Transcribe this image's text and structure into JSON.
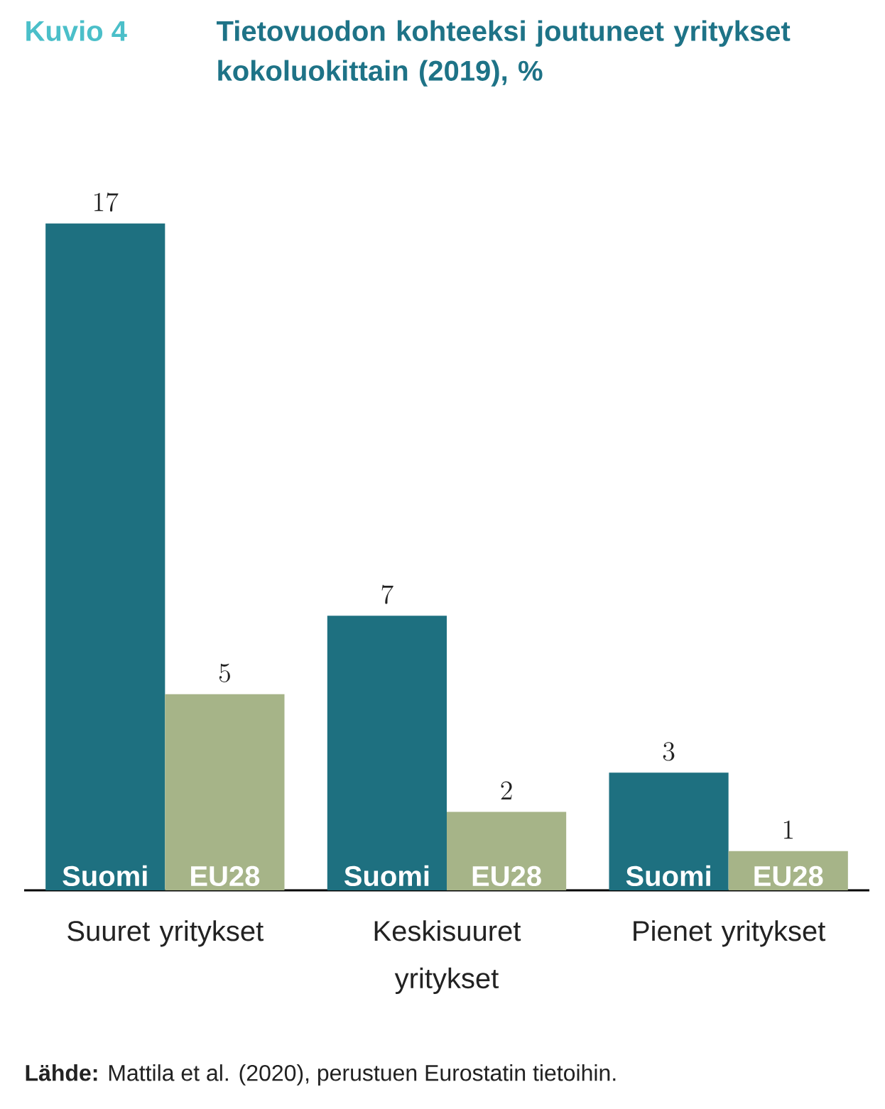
{
  "chart_data": {
    "type": "bar",
    "title": "Kuvio 4",
    "subtitle": "Tietovuodon kohteeksi joutuneet yritykset kokoluokittain (2019), %",
    "categories": [
      "Suuret yritykset",
      "Keskisuuret yritykset",
      "Pienet yritykset"
    ],
    "series": [
      {
        "name": "Suomi",
        "color": "#1e7080",
        "values": [
          17,
          7,
          3
        ]
      },
      {
        "name": "EU28",
        "color": "#a6b488",
        "values": [
          5,
          2,
          1
        ]
      }
    ],
    "data_labels": true,
    "legend": false,
    "annotations": [
      "**Lähde:** Mattila et al. (2020), perustuen Eurostatin tietoihin."
    ]
  }
}
